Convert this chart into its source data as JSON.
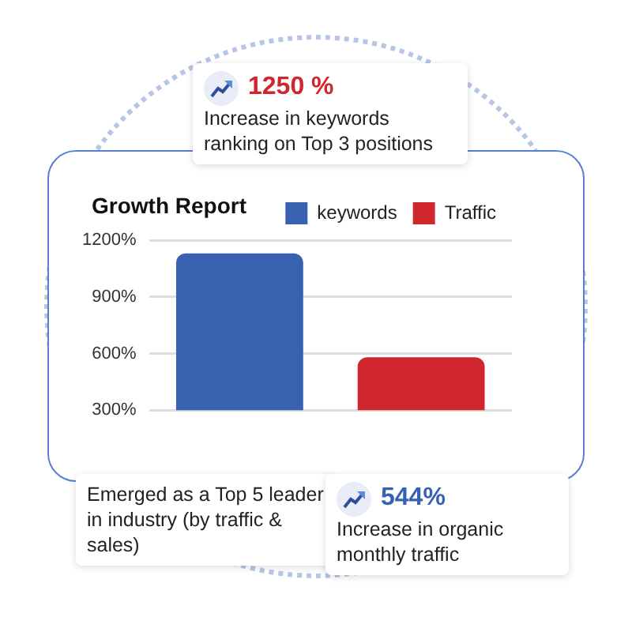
{
  "chart_data": {
    "type": "bar",
    "title": "Growth Report",
    "categories": [
      null,
      null
    ],
    "series": [
      {
        "name": "keywords",
        "color": "#3862b0",
        "values": [
          1130,
          null
        ]
      },
      {
        "name": "Traffic",
        "color": "#d0262e",
        "values": [
          null,
          580
        ]
      }
    ],
    "ylim": [
      300,
      1200
    ],
    "yticks": [
      {
        "value": 300,
        "label": "300%"
      },
      {
        "value": 600,
        "label": "600%"
      },
      {
        "value": 900,
        "label": "900%"
      },
      {
        "value": 1200,
        "label": "1200%"
      }
    ],
    "grid": "y",
    "legend": "top right",
    "annotations": [
      "1250 %",
      "Increase in keywords ranking on Top 3 positions",
      "Emerged as a Top 5 leader in industry (by traffic & sales)",
      "544%",
      "Increase in organic monthly traffic"
    ]
  }
}
